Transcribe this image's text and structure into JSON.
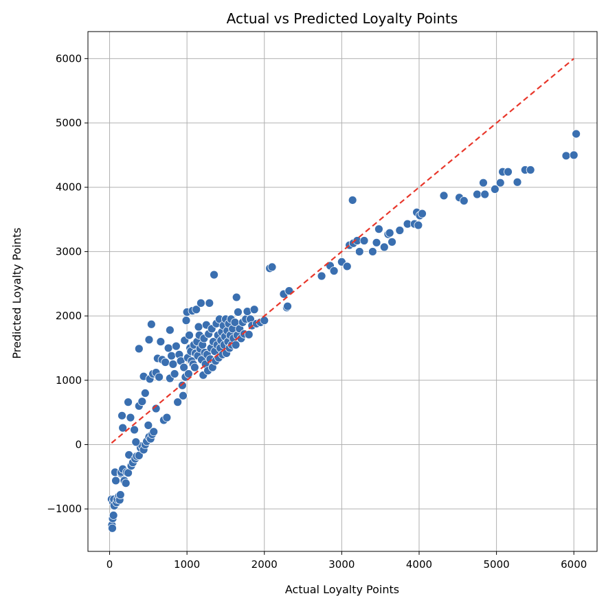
{
  "chart_data": {
    "type": "scatter",
    "title": "Actual vs Predicted Loyalty Points",
    "xlabel": "Actual Loyalty Points",
    "ylabel": "Predicted Loyalty Points",
    "xlim": [
      -280,
      6300
    ],
    "ylim": [
      -1660,
      6420
    ],
    "xticks": [
      0,
      1000,
      2000,
      3000,
      4000,
      5000,
      6000
    ],
    "yticks": [
      -1000,
      0,
      1000,
      2000,
      3000,
      4000,
      5000,
      6000
    ],
    "xtick_labels": [
      "0",
      "1000",
      "2000",
      "3000",
      "4000",
      "5000",
      "6000"
    ],
    "ytick_labels": [
      "−1000",
      "0",
      "1000",
      "2000",
      "3000",
      "4000",
      "5000",
      "6000"
    ],
    "grid": true,
    "point_color": "#3a6fb0",
    "line_color": "#e8362a",
    "reference_line": {
      "style": "dashed",
      "x": [
        25,
        6000
      ],
      "y": [
        25,
        6000
      ]
    },
    "points": [
      [
        25,
        -850
      ],
      [
        30,
        -1250
      ],
      [
        35,
        -1300
      ],
      [
        40,
        -1150
      ],
      [
        45,
        -900
      ],
      [
        50,
        -1100
      ],
      [
        55,
        -850
      ],
      [
        60,
        -950
      ],
      [
        70,
        -430
      ],
      [
        80,
        -560
      ],
      [
        90,
        -900
      ],
      [
        100,
        -850
      ],
      [
        120,
        -800
      ],
      [
        130,
        -860
      ],
      [
        140,
        -780
      ],
      [
        150,
        -450
      ],
      [
        150,
        -430
      ],
      [
        170,
        -380
      ],
      [
        190,
        -560
      ],
      [
        210,
        -600
      ],
      [
        220,
        -430
      ],
      [
        240,
        -440
      ],
      [
        250,
        -160
      ],
      [
        280,
        -330
      ],
      [
        300,
        -280
      ],
      [
        330,
        -220
      ],
      [
        350,
        -180
      ],
      [
        380,
        -170
      ],
      [
        400,
        -50
      ],
      [
        420,
        -20
      ],
      [
        440,
        -80
      ],
      [
        460,
        0
      ],
      [
        480,
        50
      ],
      [
        510,
        120
      ],
      [
        530,
        90
      ],
      [
        550,
        160
      ],
      [
        570,
        200
      ],
      [
        600,
        560
      ],
      [
        320,
        230
      ],
      [
        340,
        40
      ],
      [
        160,
        450
      ],
      [
        170,
        260
      ],
      [
        240,
        660
      ],
      [
        270,
        420
      ],
      [
        380,
        600
      ],
      [
        420,
        670
      ],
      [
        440,
        1060
      ],
      [
        460,
        800
      ],
      [
        500,
        300
      ],
      [
        520,
        1020
      ],
      [
        540,
        1870
      ],
      [
        510,
        1630
      ],
      [
        380,
        1490
      ],
      [
        560,
        1100
      ],
      [
        600,
        1120
      ],
      [
        620,
        1340
      ],
      [
        640,
        1050
      ],
      [
        660,
        1600
      ],
      [
        680,
        1320
      ],
      [
        700,
        380
      ],
      [
        720,
        1280
      ],
      [
        740,
        420
      ],
      [
        760,
        1500
      ],
      [
        780,
        1780
      ],
      [
        780,
        1030
      ],
      [
        800,
        1380
      ],
      [
        820,
        1250
      ],
      [
        840,
        1100
      ],
      [
        860,
        1530
      ],
      [
        880,
        660
      ],
      [
        900,
        1400
      ],
      [
        920,
        1300
      ],
      [
        940,
        920
      ],
      [
        950,
        760
      ],
      [
        960,
        1200
      ],
      [
        970,
        1620
      ],
      [
        980,
        1050
      ],
      [
        990,
        1930
      ],
      [
        1000,
        2060
      ],
      [
        1010,
        1350
      ],
      [
        1020,
        1100
      ],
      [
        1030,
        1700
      ],
      [
        1040,
        1500
      ],
      [
        1050,
        1450
      ],
      [
        1060,
        1300
      ],
      [
        1070,
        2080
      ],
      [
        1080,
        1250
      ],
      [
        1090,
        1550
      ],
      [
        1100,
        1200
      ],
      [
        1110,
        1420
      ],
      [
        1120,
        2100
      ],
      [
        1130,
        1600
      ],
      [
        1140,
        1380
      ],
      [
        1150,
        1830
      ],
      [
        1160,
        1700
      ],
      [
        1170,
        1490
      ],
      [
        1180,
        2200
      ],
      [
        1190,
        1320
      ],
      [
        1200,
        1550
      ],
      [
        1210,
        1080
      ],
      [
        1220,
        1650
      ],
      [
        1230,
        1430
      ],
      [
        1240,
        1250
      ],
      [
        1250,
        1860
      ],
      [
        1260,
        1400
      ],
      [
        1270,
        1150
      ],
      [
        1280,
        1720
      ],
      [
        1290,
        2200
      ],
      [
        1300,
        1330
      ],
      [
        1310,
        1500
      ],
      [
        1320,
        1800
      ],
      [
        1330,
        1200
      ],
      [
        1340,
        1600
      ],
      [
        1350,
        2640
      ],
      [
        1360,
        1450
      ],
      [
        1370,
        1300
      ],
      [
        1380,
        1880
      ],
      [
        1390,
        1550
      ],
      [
        1400,
        1700
      ],
      [
        1410,
        1350
      ],
      [
        1420,
        1950
      ],
      [
        1430,
        1500
      ],
      [
        1440,
        1620
      ],
      [
        1450,
        1750
      ],
      [
        1460,
        1400
      ],
      [
        1470,
        1850
      ],
      [
        1480,
        1550
      ],
      [
        1490,
        1680
      ],
      [
        1500,
        1950
      ],
      [
        1510,
        1420
      ],
      [
        1520,
        1770
      ],
      [
        1530,
        1600
      ],
      [
        1540,
        1880
      ],
      [
        1550,
        1500
      ],
      [
        1560,
        1700
      ],
      [
        1570,
        1950
      ],
      [
        1580,
        1550
      ],
      [
        1590,
        1800
      ],
      [
        1600,
        1650
      ],
      [
        1620,
        1900
      ],
      [
        1630,
        1550
      ],
      [
        1640,
        2290
      ],
      [
        1650,
        1700
      ],
      [
        1660,
        2060
      ],
      [
        1680,
        1800
      ],
      [
        1700,
        1650
      ],
      [
        1720,
        1900
      ],
      [
        1740,
        1720
      ],
      [
        1760,
        1950
      ],
      [
        1780,
        2070
      ],
      [
        1800,
        1710
      ],
      [
        1820,
        1950
      ],
      [
        1840,
        1850
      ],
      [
        1870,
        2100
      ],
      [
        1900,
        1880
      ],
      [
        1950,
        1900
      ],
      [
        2000,
        1930
      ],
      [
        2070,
        2740
      ],
      [
        2100,
        2760
      ],
      [
        2250,
        2340
      ],
      [
        2290,
        2130
      ],
      [
        2300,
        2150
      ],
      [
        2320,
        2390
      ],
      [
        2740,
        2620
      ],
      [
        2850,
        2780
      ],
      [
        2900,
        2700
      ],
      [
        3000,
        2840
      ],
      [
        3070,
        2770
      ],
      [
        3140,
        3800
      ],
      [
        3100,
        3100
      ],
      [
        3150,
        3130
      ],
      [
        3200,
        3170
      ],
      [
        3230,
        3000
      ],
      [
        3290,
        3170
      ],
      [
        3400,
        3000
      ],
      [
        3450,
        3140
      ],
      [
        3480,
        3350
      ],
      [
        3550,
        3070
      ],
      [
        3600,
        3270
      ],
      [
        3620,
        3290
      ],
      [
        3650,
        3150
      ],
      [
        3750,
        3330
      ],
      [
        3850,
        3430
      ],
      [
        3940,
        3430
      ],
      [
        3970,
        3610
      ],
      [
        3990,
        3410
      ],
      [
        4010,
        3560
      ],
      [
        4040,
        3590
      ],
      [
        4320,
        3870
      ],
      [
        4520,
        3840
      ],
      [
        4580,
        3790
      ],
      [
        4750,
        3890
      ],
      [
        4830,
        4070
      ],
      [
        4850,
        3890
      ],
      [
        4980,
        3970
      ],
      [
        5050,
        4070
      ],
      [
        5080,
        4240
      ],
      [
        5150,
        4240
      ],
      [
        5270,
        4080
      ],
      [
        5370,
        4270
      ],
      [
        5440,
        4270
      ],
      [
        5900,
        4490
      ],
      [
        6000,
        4500
      ],
      [
        6030,
        4830
      ]
    ]
  }
}
